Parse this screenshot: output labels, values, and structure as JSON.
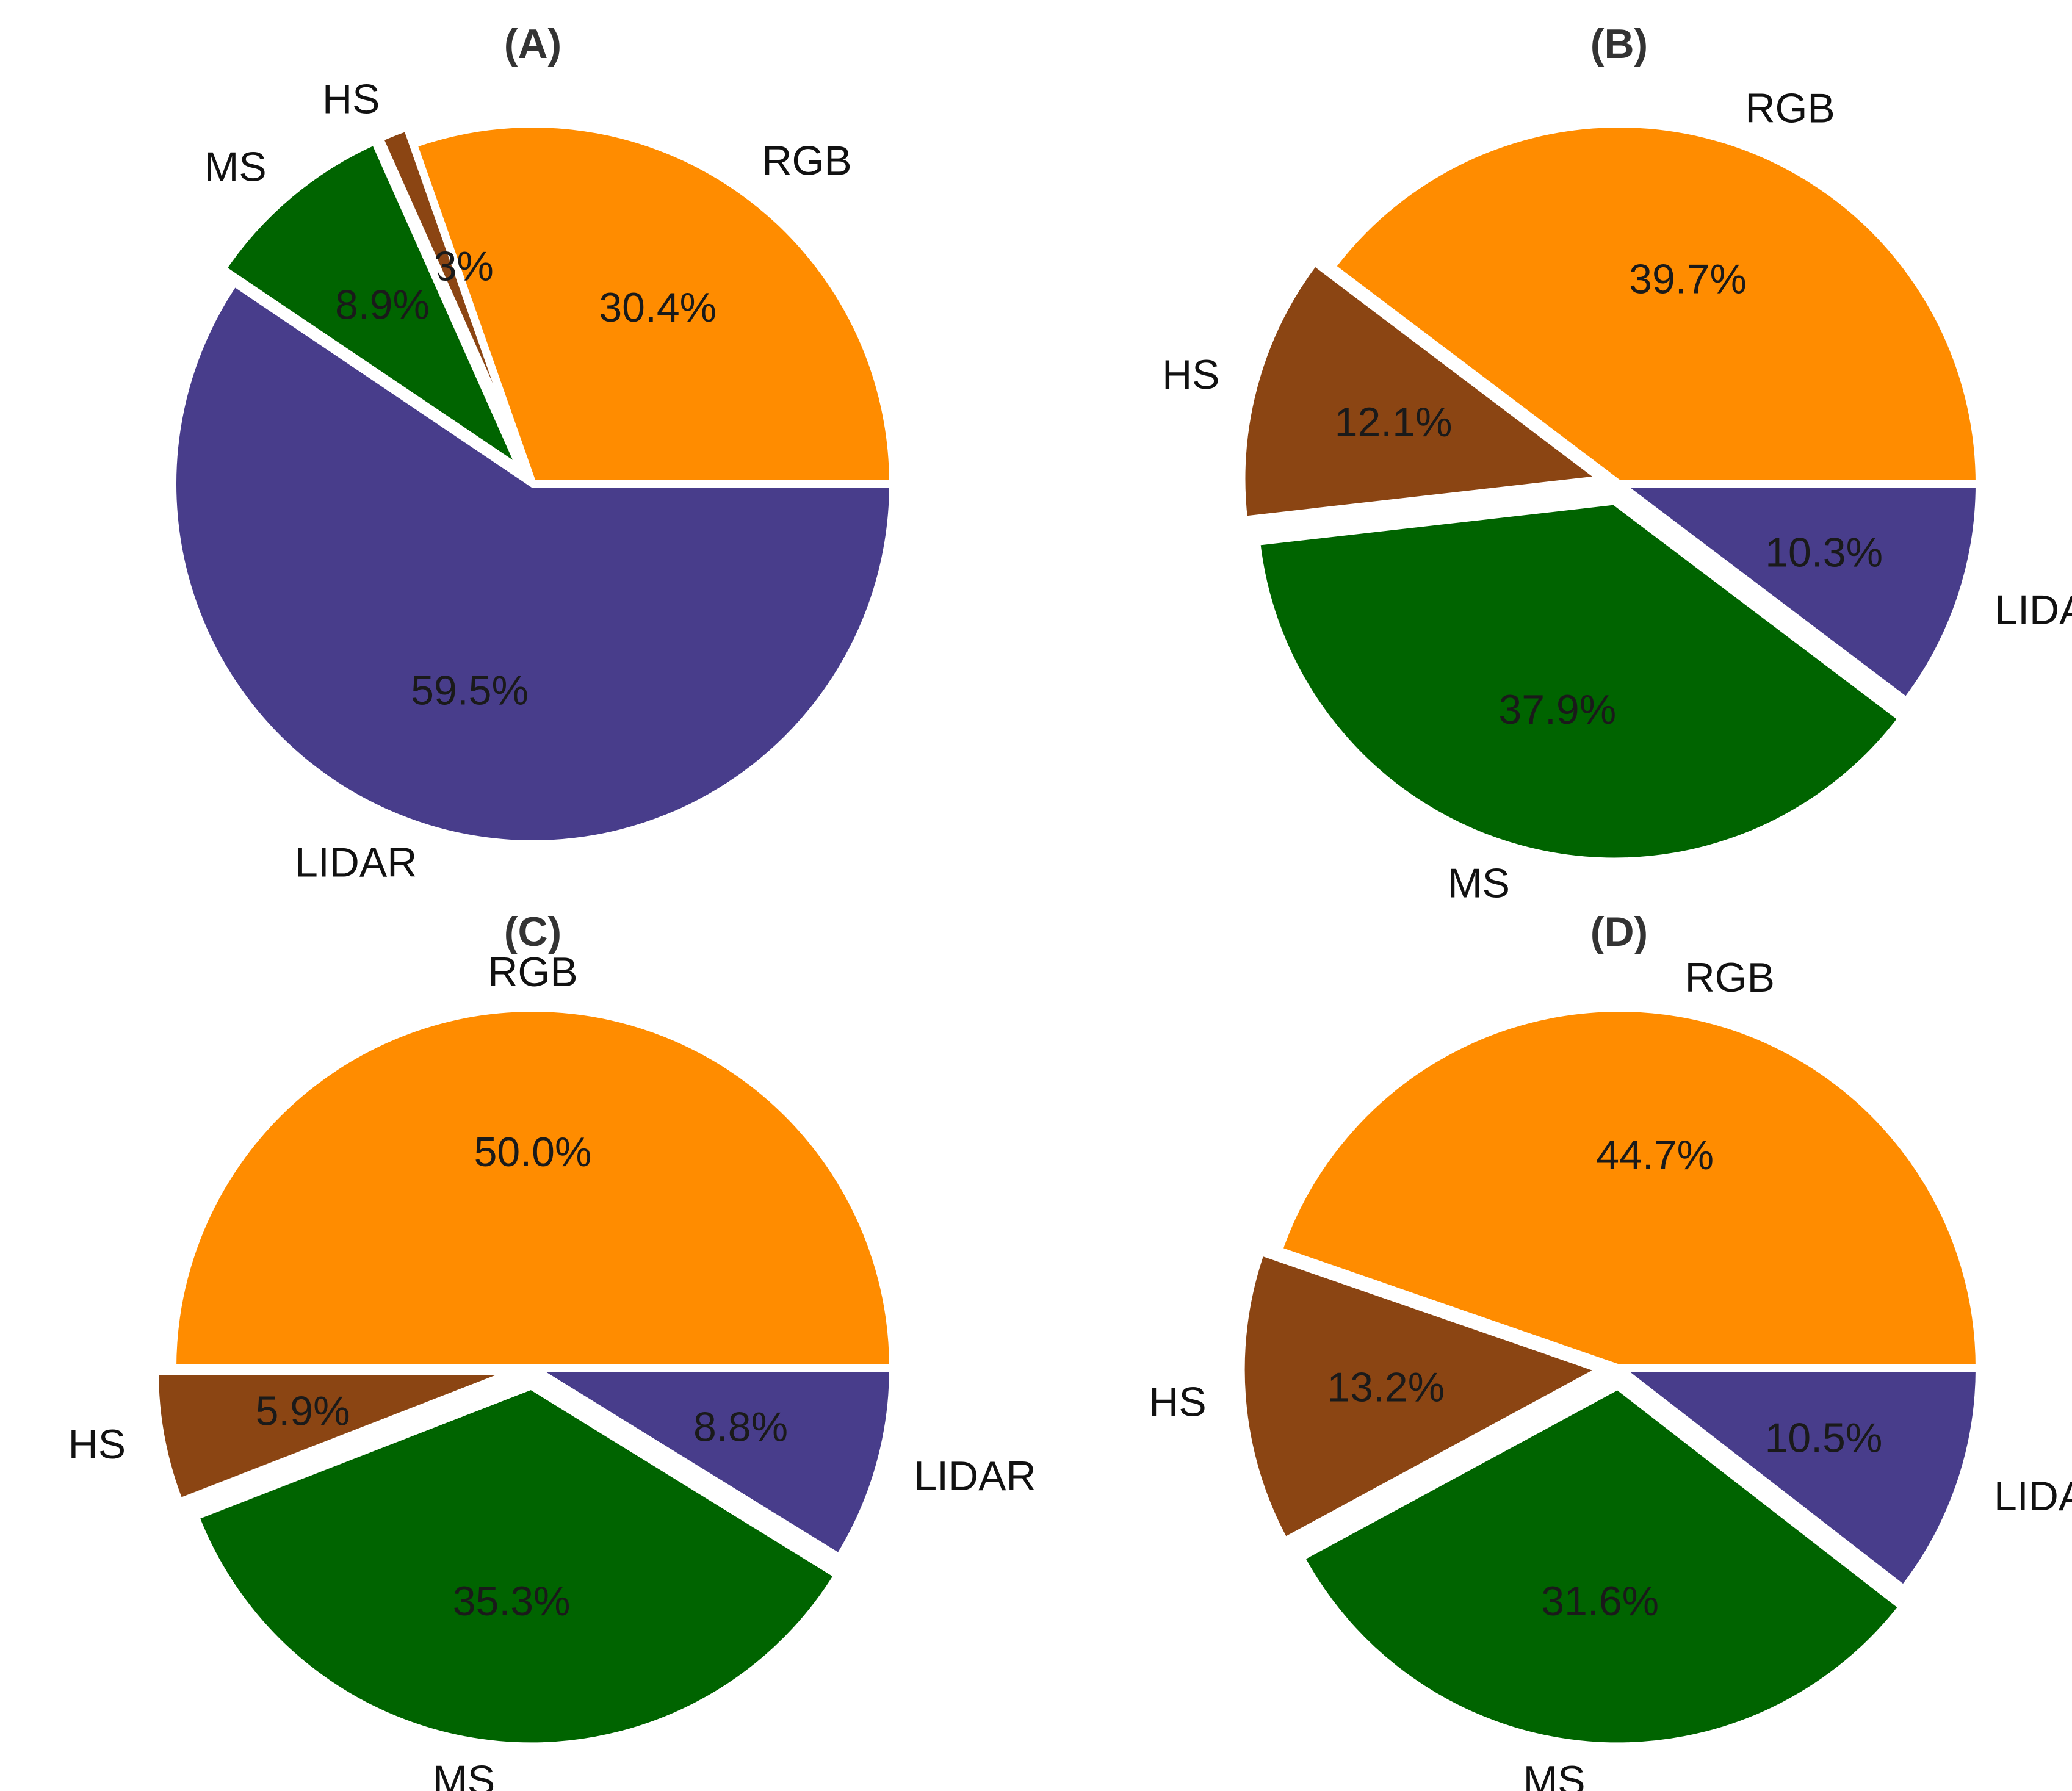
{
  "chart_data": [
    {
      "type": "pie",
      "title": "(A)",
      "colors": [
        "#ff8c00",
        "#8b4513",
        "#006400",
        "#483d8b"
      ],
      "slices": [
        {
          "label": "RGB",
          "value": 30.4,
          "pct_text": "30.4%",
          "exploded": false
        },
        {
          "label": "HS",
          "value": 1.3,
          "pct_text": "1.3%",
          "exploded": true
        },
        {
          "label": "MS",
          "value": 8.9,
          "pct_text": "8.9%",
          "exploded": true
        },
        {
          "label": "LIDAR",
          "value": 59.5,
          "pct_text": "59.5%",
          "exploded": false
        }
      ]
    },
    {
      "type": "pie",
      "title": "(B)",
      "colors": [
        "#ff8c00",
        "#8b4513",
        "#006400",
        "#483d8b"
      ],
      "slices": [
        {
          "label": "RGB",
          "value": 39.7,
          "pct_text": "39.7%",
          "exploded": false
        },
        {
          "label": "HS",
          "value": 12.1,
          "pct_text": "12.1%",
          "exploded": true
        },
        {
          "label": "MS",
          "value": 37.9,
          "pct_text": "37.9%",
          "exploded": true
        },
        {
          "label": "LIDAR",
          "value": 10.3,
          "pct_text": "10.3%",
          "exploded": false
        }
      ]
    },
    {
      "type": "pie",
      "title": "(C)",
      "colors": [
        "#ff8c00",
        "#8b4513",
        "#006400",
        "#483d8b"
      ],
      "slices": [
        {
          "label": "RGB",
          "value": 50.0,
          "pct_text": "50.0%",
          "exploded": false
        },
        {
          "label": "HS",
          "value": 5.9,
          "pct_text": "5.9%",
          "exploded": true
        },
        {
          "label": "MS",
          "value": 35.3,
          "pct_text": "35.3%",
          "exploded": true
        },
        {
          "label": "LIDAR",
          "value": 8.8,
          "pct_text": "8.8%",
          "exploded": false
        }
      ]
    },
    {
      "type": "pie",
      "title": "(D)",
      "colors": [
        "#ff8c00",
        "#8b4513",
        "#006400",
        "#483d8b"
      ],
      "slices": [
        {
          "label": "RGB",
          "value": 44.7,
          "pct_text": "44.7%",
          "exploded": false
        },
        {
          "label": "HS",
          "value": 13.2,
          "pct_text": "13.2%",
          "exploded": true
        },
        {
          "label": "MS",
          "value": 31.6,
          "pct_text": "31.6%",
          "exploded": true
        },
        {
          "label": "LIDAR",
          "value": 10.5,
          "pct_text": "10.5%",
          "exploded": false
        }
      ]
    }
  ]
}
